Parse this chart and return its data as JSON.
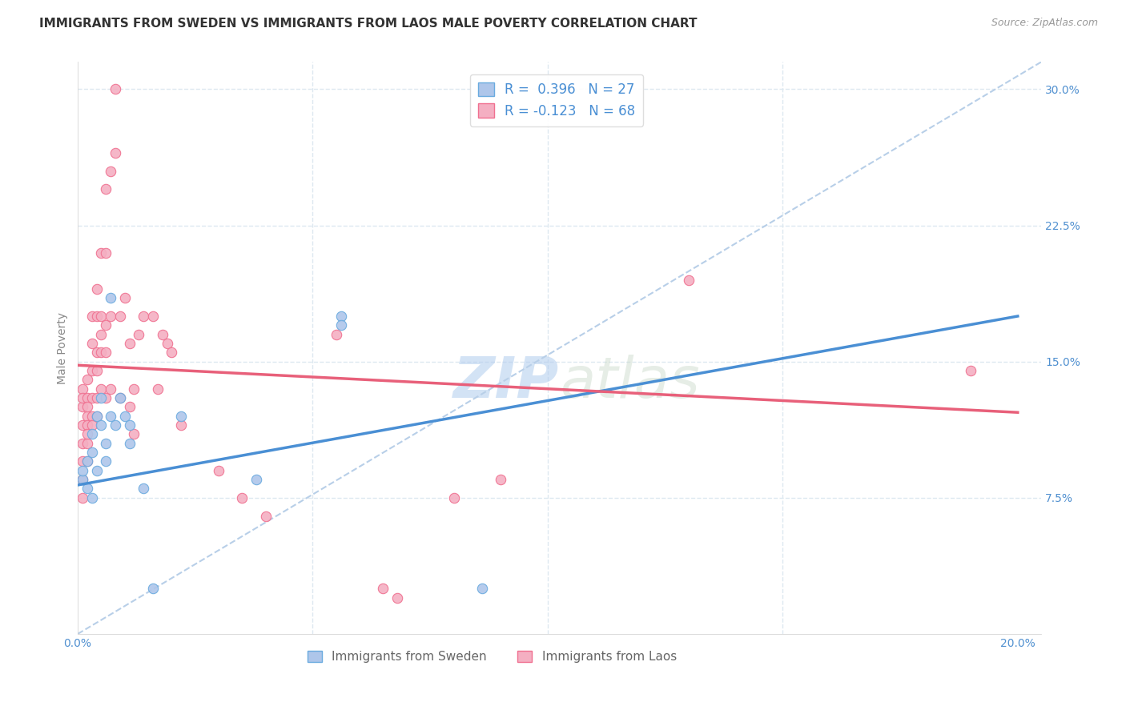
{
  "title": "IMMIGRANTS FROM SWEDEN VS IMMIGRANTS FROM LAOS MALE POVERTY CORRELATION CHART",
  "source": "Source: ZipAtlas.com",
  "ylabel": "Male Poverty",
  "xlim": [
    0.0,
    0.205
  ],
  "ylim": [
    0.0,
    0.315
  ],
  "xticks": [
    0.0,
    0.05,
    0.1,
    0.15,
    0.2
  ],
  "xticklabels": [
    "0.0%",
    "",
    "",
    "",
    "20.0%"
  ],
  "yticks": [
    0.075,
    0.15,
    0.225,
    0.3
  ],
  "yticklabels": [
    "7.5%",
    "15.0%",
    "22.5%",
    "30.0%"
  ],
  "sweden_color": "#aec6ea",
  "laos_color": "#f4afc2",
  "sweden_edge_color": "#6aabdf",
  "laos_edge_color": "#f07090",
  "sweden_line_color": "#4a8fd4",
  "laos_line_color": "#e8607a",
  "trendline_color": "#b8cfe8",
  "legend_text_1": "R =  0.396   N = 27",
  "legend_text_2": "R = -0.123   N = 68",
  "sweden_scatter": [
    [
      0.001,
      0.085
    ],
    [
      0.001,
      0.09
    ],
    [
      0.002,
      0.095
    ],
    [
      0.002,
      0.08
    ],
    [
      0.003,
      0.075
    ],
    [
      0.003,
      0.1
    ],
    [
      0.003,
      0.11
    ],
    [
      0.004,
      0.12
    ],
    [
      0.004,
      0.09
    ],
    [
      0.005,
      0.13
    ],
    [
      0.005,
      0.115
    ],
    [
      0.006,
      0.105
    ],
    [
      0.006,
      0.095
    ],
    [
      0.007,
      0.185
    ],
    [
      0.007,
      0.12
    ],
    [
      0.008,
      0.115
    ],
    [
      0.009,
      0.13
    ],
    [
      0.01,
      0.12
    ],
    [
      0.011,
      0.115
    ],
    [
      0.011,
      0.105
    ],
    [
      0.014,
      0.08
    ],
    [
      0.016,
      0.025
    ],
    [
      0.022,
      0.12
    ],
    [
      0.038,
      0.085
    ],
    [
      0.056,
      0.175
    ],
    [
      0.056,
      0.17
    ],
    [
      0.086,
      0.025
    ]
  ],
  "laos_scatter": [
    [
      0.001,
      0.125
    ],
    [
      0.001,
      0.115
    ],
    [
      0.001,
      0.105
    ],
    [
      0.001,
      0.095
    ],
    [
      0.001,
      0.085
    ],
    [
      0.001,
      0.075
    ],
    [
      0.001,
      0.135
    ],
    [
      0.001,
      0.13
    ],
    [
      0.002,
      0.14
    ],
    [
      0.002,
      0.13
    ],
    [
      0.002,
      0.12
    ],
    [
      0.002,
      0.115
    ],
    [
      0.002,
      0.105
    ],
    [
      0.002,
      0.095
    ],
    [
      0.002,
      0.125
    ],
    [
      0.002,
      0.11
    ],
    [
      0.003,
      0.175
    ],
    [
      0.003,
      0.16
    ],
    [
      0.003,
      0.145
    ],
    [
      0.003,
      0.13
    ],
    [
      0.003,
      0.12
    ],
    [
      0.003,
      0.115
    ],
    [
      0.004,
      0.19
    ],
    [
      0.004,
      0.175
    ],
    [
      0.004,
      0.155
    ],
    [
      0.004,
      0.145
    ],
    [
      0.004,
      0.13
    ],
    [
      0.004,
      0.12
    ],
    [
      0.005,
      0.21
    ],
    [
      0.005,
      0.175
    ],
    [
      0.005,
      0.155
    ],
    [
      0.005,
      0.135
    ],
    [
      0.005,
      0.165
    ],
    [
      0.006,
      0.245
    ],
    [
      0.006,
      0.21
    ],
    [
      0.006,
      0.17
    ],
    [
      0.006,
      0.155
    ],
    [
      0.006,
      0.13
    ],
    [
      0.007,
      0.255
    ],
    [
      0.007,
      0.175
    ],
    [
      0.007,
      0.135
    ],
    [
      0.008,
      0.3
    ],
    [
      0.008,
      0.265
    ],
    [
      0.009,
      0.175
    ],
    [
      0.009,
      0.13
    ],
    [
      0.01,
      0.185
    ],
    [
      0.011,
      0.16
    ],
    [
      0.011,
      0.125
    ],
    [
      0.012,
      0.135
    ],
    [
      0.012,
      0.11
    ],
    [
      0.013,
      0.165
    ],
    [
      0.014,
      0.175
    ],
    [
      0.016,
      0.175
    ],
    [
      0.017,
      0.135
    ],
    [
      0.018,
      0.165
    ],
    [
      0.019,
      0.16
    ],
    [
      0.02,
      0.155
    ],
    [
      0.022,
      0.115
    ],
    [
      0.03,
      0.09
    ],
    [
      0.035,
      0.075
    ],
    [
      0.04,
      0.065
    ],
    [
      0.055,
      0.165
    ],
    [
      0.065,
      0.025
    ],
    [
      0.068,
      0.02
    ],
    [
      0.08,
      0.075
    ],
    [
      0.09,
      0.085
    ],
    [
      0.13,
      0.195
    ],
    [
      0.19,
      0.145
    ]
  ],
  "watermark": "ZIPatlas",
  "background_color": "#ffffff",
  "grid_color": "#dde8f0",
  "title_fontsize": 11,
  "axis_label_fontsize": 10,
  "tick_fontsize": 10,
  "legend_fontsize": 12,
  "sweden_line_x0": 0.0,
  "sweden_line_y0": 0.082,
  "sweden_line_x1": 0.2,
  "sweden_line_y1": 0.175,
  "laos_line_x0": 0.0,
  "laos_line_y0": 0.148,
  "laos_line_x1": 0.2,
  "laos_line_y1": 0.122,
  "diag_line_x0": 0.0,
  "diag_line_y0": 0.0,
  "diag_line_x1": 0.205,
  "diag_line_y1": 0.315
}
